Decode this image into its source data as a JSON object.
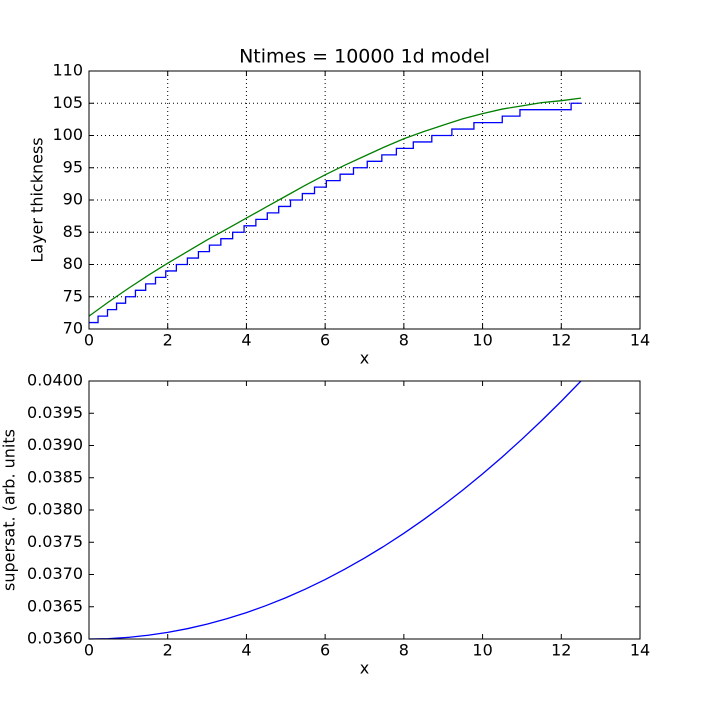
{
  "chart_data": [
    {
      "type": "line",
      "title": "Ntimes = 10000 1d model",
      "xlabel": "x",
      "ylabel": "Layer thickness",
      "xlim": [
        0,
        14
      ],
      "ylim": [
        70,
        110
      ],
      "xticks": [
        0,
        2,
        4,
        6,
        8,
        10,
        12,
        14
      ],
      "yticks": [
        70,
        75,
        80,
        85,
        90,
        95,
        100,
        105,
        110
      ],
      "grid": true,
      "series": [
        {
          "color": "#0000ff",
          "x": [
            0,
            0.23,
            0.23,
            0.47,
            0.47,
            0.7,
            0.7,
            0.93,
            0.93,
            1.18,
            1.18,
            1.44,
            1.44,
            1.69,
            1.69,
            1.95,
            1.95,
            2.22,
            2.22,
            2.5,
            2.5,
            2.78,
            2.78,
            3.06,
            3.06,
            3.35,
            3.35,
            3.65,
            3.65,
            3.94,
            3.94,
            4.24,
            4.24,
            4.53,
            4.53,
            4.82,
            4.82,
            5.12,
            5.12,
            5.42,
            5.42,
            5.73,
            5.73,
            6.03,
            6.03,
            6.38,
            6.38,
            6.72,
            6.72,
            7.07,
            7.07,
            7.44,
            7.44,
            7.81,
            7.81,
            8.24,
            8.24,
            8.71,
            8.71,
            9.22,
            9.22,
            9.78,
            9.78,
            10.5,
            10.5,
            10.95,
            10.95,
            12.25,
            12.25,
            12.5
          ],
          "values": [
            71,
            71,
            72,
            72,
            73,
            73,
            74,
            74,
            75,
            75,
            76,
            76,
            77,
            77,
            78,
            78,
            79,
            79,
            80,
            80,
            81,
            81,
            82,
            82,
            83,
            83,
            84,
            84,
            85,
            85,
            86,
            86,
            87,
            87,
            88,
            88,
            89,
            89,
            90,
            90,
            91,
            91,
            92,
            92,
            93,
            93,
            94,
            94,
            95,
            95,
            96,
            96,
            97,
            97,
            98,
            98,
            99,
            99,
            100,
            100,
            101,
            101,
            102,
            102,
            103,
            103,
            104,
            104,
            105,
            105
          ]
        },
        {
          "color": "#008000",
          "x": [
            0,
            0.5,
            1,
            1.5,
            2,
            2.5,
            3,
            3.5,
            4,
            4.5,
            5,
            5.5,
            6,
            6.5,
            7,
            7.5,
            8,
            8.5,
            9,
            9.5,
            10,
            10.5,
            11,
            11.5,
            12,
            12.5
          ],
          "values": [
            72,
            74.2,
            76.3,
            78.3,
            80.2,
            82.0,
            83.8,
            85.5,
            87.2,
            88.9,
            90.6,
            92.3,
            93.9,
            95.4,
            96.8,
            98.2,
            99.5,
            100.6,
            101.6,
            102.6,
            103.4,
            104.1,
            104.6,
            105.1,
            105.4,
            105.8
          ]
        }
      ]
    },
    {
      "type": "line",
      "xlabel": "x",
      "ylabel": "supersat. (arb. units",
      "xlim": [
        0,
        14
      ],
      "ylim": [
        0.036,
        0.04
      ],
      "xticks": [
        0,
        2,
        4,
        6,
        8,
        10,
        12,
        14
      ],
      "yticks": [
        {
          "value": 0.036,
          "label": "0.0360"
        },
        {
          "value": 0.0365,
          "label": "0.0365"
        },
        {
          "value": 0.037,
          "label": "0.0370"
        },
        {
          "value": 0.0375,
          "label": "0.0375"
        },
        {
          "value": 0.038,
          "label": "0.0380"
        },
        {
          "value": 0.0385,
          "label": "0.0385"
        },
        {
          "value": 0.039,
          "label": "0.0390"
        },
        {
          "value": 0.0395,
          "label": "0.0395"
        },
        {
          "value": 0.04,
          "label": "0.0400"
        }
      ],
      "grid": false,
      "series": [
        {
          "color": "#0000ff",
          "x": [
            0,
            0.5,
            1,
            1.5,
            2,
            2.5,
            3,
            3.5,
            4,
            4.5,
            5,
            5.5,
            6,
            6.5,
            7,
            7.5,
            8,
            8.5,
            9,
            9.5,
            10,
            10.5,
            11,
            11.5,
            12,
            12.5
          ],
          "values": [
            0.036,
            0.0360064,
            0.0360256,
            0.0360576,
            0.0361024,
            0.03616,
            0.0362304,
            0.0363136,
            0.0364096,
            0.0365184,
            0.03664,
            0.0367744,
            0.0369216,
            0.0370816,
            0.0372544,
            0.03744,
            0.0376384,
            0.0378496,
            0.0380736,
            0.0383104,
            0.03856,
            0.0388224,
            0.0390976,
            0.0393856,
            0.0396864,
            0.04
          ]
        }
      ]
    }
  ]
}
